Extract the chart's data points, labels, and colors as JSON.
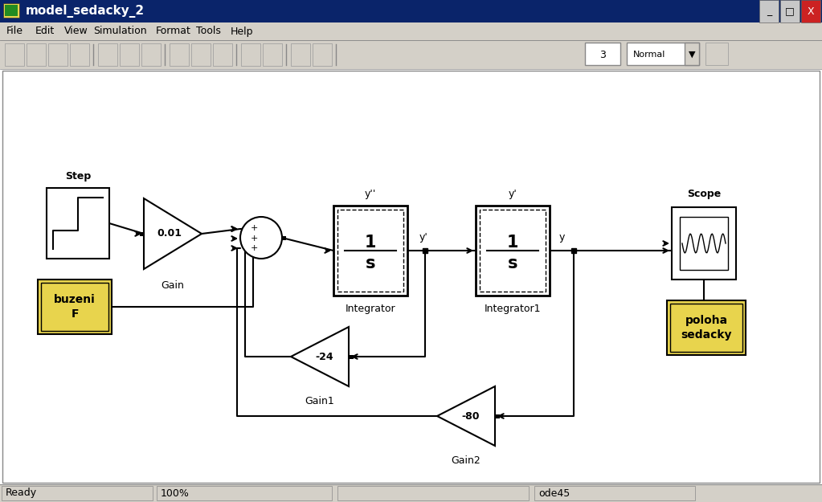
{
  "title": "model_sedacky_2",
  "bg_color": "#d4d0c8",
  "canvas_color": "#ffffff",
  "titlebar_color": "#0a246a",
  "titlebar_text_color": "#ffffff",
  "menu_items": [
    "File",
    "Edit",
    "View",
    "Simulation",
    "Format",
    "Tools",
    "Help"
  ],
  "status_items": [
    "Ready",
    "100%",
    "",
    "ode45"
  ],
  "wire_color": "#000000",
  "block_color": "#ffffff",
  "yellow_color": "#e8d44d"
}
